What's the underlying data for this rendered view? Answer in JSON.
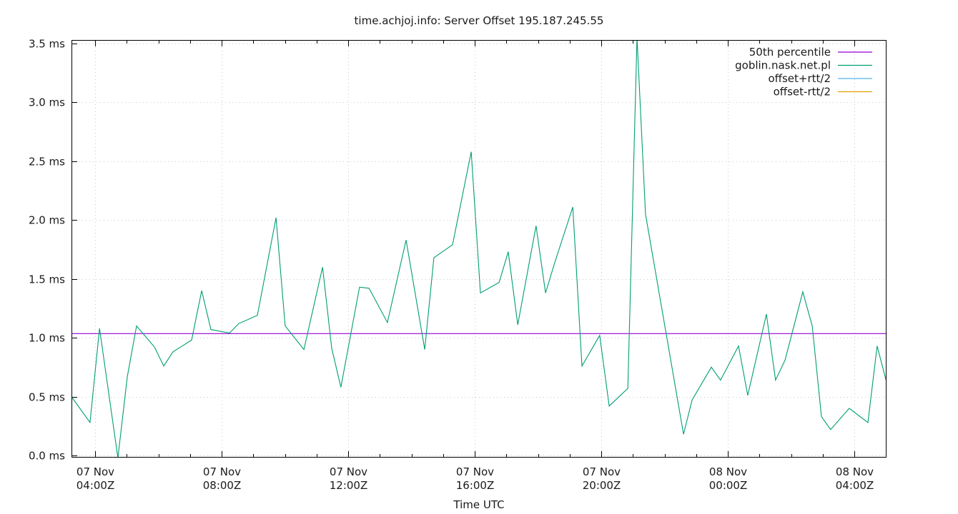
{
  "chart_data": {
    "type": "line",
    "title": "time.achjoj.info: Server Offset 195.187.245.55",
    "xlabel": "Time UTC",
    "ylabel": "",
    "x_unit": "hours since 07 Nov 00:00Z",
    "xlim": [
      3.25,
      29.0
    ],
    "ylim": [
      0.0,
      3.5
    ],
    "grid": true,
    "legend_position": "top-right",
    "y_ticks": [
      {
        "value": 0.0,
        "label": "0.0 ms"
      },
      {
        "value": 0.5,
        "label": "0.5 ms"
      },
      {
        "value": 1.0,
        "label": "1.0 ms"
      },
      {
        "value": 1.5,
        "label": "1.5 ms"
      },
      {
        "value": 2.0,
        "label": "2.0 ms"
      },
      {
        "value": 2.5,
        "label": "2.5 ms"
      },
      {
        "value": 3.0,
        "label": "3.0 ms"
      },
      {
        "value": 3.5,
        "label": "3.5 ms"
      }
    ],
    "x_ticks": [
      {
        "value": 4,
        "line1": "07 Nov",
        "line2": "04:00Z"
      },
      {
        "value": 8,
        "line1": "07 Nov",
        "line2": "08:00Z"
      },
      {
        "value": 12,
        "line1": "07 Nov",
        "line2": "12:00Z"
      },
      {
        "value": 16,
        "line1": "07 Nov",
        "line2": "16:00Z"
      },
      {
        "value": 20,
        "line1": "07 Nov",
        "line2": "20:00Z"
      },
      {
        "value": 24,
        "line1": "08 Nov",
        "line2": "00:00Z"
      },
      {
        "value": 28,
        "line1": "08 Nov",
        "line2": "04:00Z"
      }
    ],
    "legend": [
      {
        "name": "50th percentile",
        "color": "#9400d3"
      },
      {
        "name": "goblin.nask.net.pl",
        "color": "#009e73"
      },
      {
        "name": "offset+rtt/2",
        "color": "#56b4e9"
      },
      {
        "name": "offset-rtt/2",
        "color": "#e69f00"
      }
    ],
    "series": [
      {
        "name": "50th percentile",
        "color": "#9400d3",
        "kind": "hline",
        "value": 1.035
      },
      {
        "name": "goblin.nask.net.pl",
        "color": "#009e73",
        "kind": "line",
        "x": [
          3.25,
          3.84,
          4.14,
          4.72,
          5.02,
          5.31,
          5.88,
          6.17,
          6.46,
          7.05,
          7.37,
          7.66,
          8.25,
          8.54,
          9.13,
          9.72,
          10.01,
          10.6,
          11.19,
          11.48,
          11.77,
          12.36,
          12.66,
          13.24,
          13.83,
          14.42,
          14.71,
          15.3,
          15.89,
          16.18,
          16.77,
          17.06,
          17.36,
          17.94,
          18.24,
          18.53,
          19.1,
          19.39,
          19.95,
          20.25,
          20.84,
          21.13,
          21.4,
          22.6,
          22.87,
          23.48,
          23.77,
          24.34,
          24.63,
          25.22,
          25.51,
          25.81,
          26.37,
          26.67,
          26.96,
          27.25,
          27.84,
          28.43,
          28.72,
          29.0
        ],
        "values": [
          0.5,
          0.28,
          1.08,
          -0.02,
          0.67,
          1.1,
          0.92,
          0.76,
          0.88,
          0.98,
          1.4,
          1.07,
          1.04,
          1.12,
          1.19,
          2.02,
          1.1,
          0.9,
          1.6,
          0.91,
          0.58,
          1.43,
          1.42,
          1.13,
          1.83,
          0.9,
          1.68,
          1.79,
          2.58,
          1.38,
          1.47,
          1.73,
          1.11,
          1.95,
          1.38,
          1.64,
          2.11,
          0.76,
          1.02,
          0.42,
          0.57,
          3.55,
          2.05,
          0.18,
          0.47,
          0.75,
          0.64,
          0.93,
          0.51,
          1.2,
          0.64,
          0.81,
          1.39,
          1.1,
          0.33,
          0.22,
          0.4,
          0.28,
          0.93,
          0.64
        ]
      },
      {
        "name": "offset+rtt/2",
        "color": "#56b4e9",
        "kind": "line",
        "x": [],
        "values": []
      },
      {
        "name": "offset-rtt/2",
        "color": "#e69f00",
        "kind": "line",
        "x": [],
        "values": []
      }
    ]
  }
}
